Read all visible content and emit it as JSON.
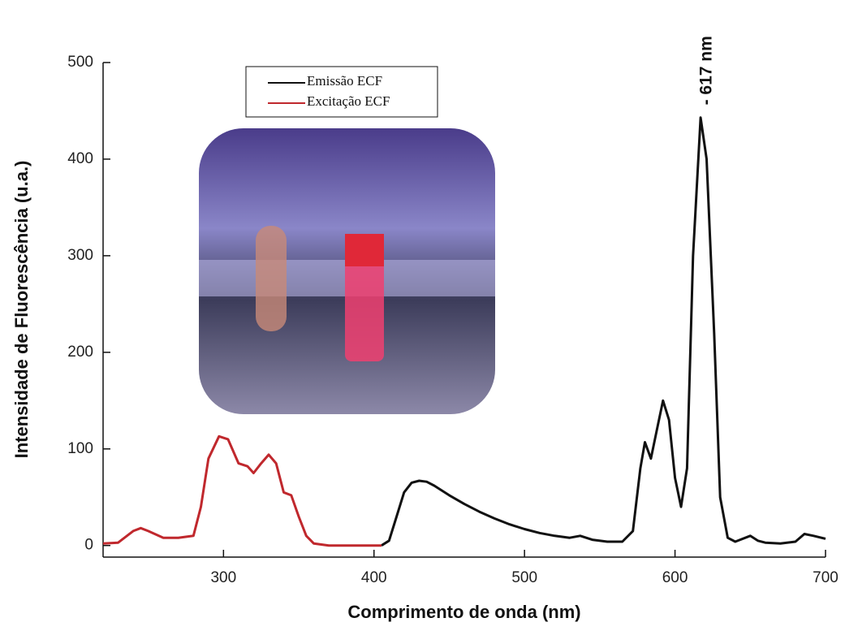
{
  "chart_data": {
    "type": "line",
    "xlabel": "Comprimento de onda (nm)",
    "ylabel": "Intensidade de Fluorescência (u.a.)",
    "annotation": "- 617 nm",
    "xlim": [
      220,
      700
    ],
    "xticks": [
      300,
      400,
      500,
      600,
      700
    ],
    "ylim": [
      -12,
      500
    ],
    "yticks": [
      0,
      100,
      200,
      300,
      400,
      500
    ],
    "series": [
      {
        "name": "Emissão ECF",
        "color": "#111111",
        "x": [
          405,
          410,
          415,
          420,
          425,
          430,
          435,
          440,
          450,
          460,
          470,
          480,
          490,
          500,
          510,
          520,
          530,
          537,
          545,
          555,
          565,
          572,
          577,
          580,
          584,
          588,
          592,
          596,
          600,
          604,
          608,
          612,
          617,
          621,
          626,
          630,
          635,
          640,
          650,
          655,
          660,
          670,
          680,
          686,
          692,
          700
        ],
        "values": [
          0,
          5,
          30,
          55,
          65,
          67,
          66,
          62,
          52,
          43,
          35,
          28,
          22,
          17,
          13,
          10,
          8,
          10,
          6,
          4,
          4,
          15,
          80,
          107,
          90,
          120,
          150,
          130,
          70,
          40,
          80,
          300,
          443,
          400,
          220,
          50,
          8,
          4,
          10,
          5,
          3,
          2,
          4,
          12,
          10,
          7
        ]
      },
      {
        "name": "Excitação ECF",
        "color": "#c0282d",
        "x": [
          220,
          230,
          240,
          245,
          250,
          260,
          270,
          280,
          285,
          290,
          297,
          303,
          310,
          316,
          320,
          325,
          330,
          335,
          340,
          345,
          350,
          355,
          360,
          370,
          380,
          400,
          405
        ],
        "values": [
          2,
          3,
          15,
          18,
          15,
          8,
          8,
          10,
          40,
          90,
          113,
          110,
          85,
          82,
          75,
          85,
          94,
          85,
          55,
          52,
          30,
          10,
          2,
          0,
          0,
          0,
          0
        ]
      }
    ]
  }
}
